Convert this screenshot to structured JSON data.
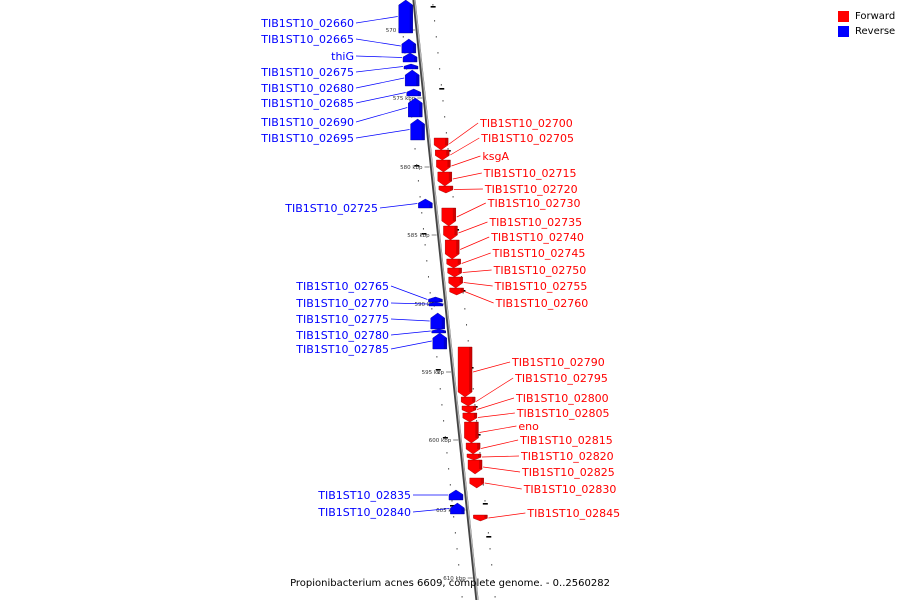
{
  "colors": {
    "forward": "#ff0000",
    "reverse": "#0000ff",
    "backbone": "#888888"
  },
  "legend": {
    "forward": "Forward",
    "reverse": "Reverse"
  },
  "caption": "Propionibacterium acnes 6609, complete genome. - 0..2560282",
  "ticks": [
    "570 kbp",
    "575 kbp",
    "580 kbp",
    "585 kbp",
    "590 kbp",
    "595 kbp",
    "600 kbp",
    "605 kbp",
    "610 kbp"
  ],
  "reverse_genes": [
    "TIB1ST10_02660",
    "TIB1ST10_02665",
    "thiG",
    "TIB1ST10_02675",
    "TIB1ST10_02680",
    "TIB1ST10_02685",
    "TIB1ST10_02690",
    "TIB1ST10_02695",
    "TIB1ST10_02725",
    "TIB1ST10_02765",
    "TIB1ST10_02770",
    "TIB1ST10_02775",
    "TIB1ST10_02780",
    "TIB1ST10_02785",
    "TIB1ST10_02835",
    "TIB1ST10_02840"
  ],
  "forward_genes": [
    "TIB1ST10_02700",
    "TIB1ST10_02705",
    "ksgA",
    "TIB1ST10_02715",
    "TIB1ST10_02720",
    "TIB1ST10_02730",
    "TIB1ST10_02735",
    "TIB1ST10_02740",
    "TIB1ST10_02745",
    "TIB1ST10_02750",
    "TIB1ST10_02755",
    "TIB1ST10_02760",
    "TIB1ST10_02790",
    "TIB1ST10_02795",
    "TIB1ST10_02800",
    "TIB1ST10_02805",
    "eno",
    "TIB1ST10_02815",
    "TIB1ST10_02820",
    "TIB1ST10_02825",
    "TIB1ST10_02830",
    "TIB1ST10_02845"
  ]
}
